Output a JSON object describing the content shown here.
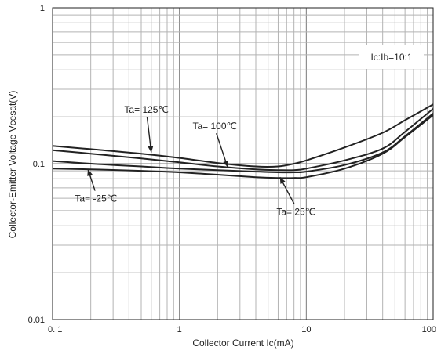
{
  "chart_data": {
    "type": "line",
    "xlabel": "Collector Current   Ic(mA)",
    "ylabel": "Collector-Emitter Voltage   Vcesat(V)",
    "x_scale": "log",
    "y_scale": "log",
    "xlim": [
      0.1,
      100
    ],
    "ylim": [
      0.01,
      1
    ],
    "grid": true,
    "x_ticks": [
      {
        "value": 0.1,
        "label": "0. 1"
      },
      {
        "value": 1,
        "label": "1"
      },
      {
        "value": 10,
        "label": "10"
      },
      {
        "value": 100,
        "label": "100"
      }
    ],
    "y_ticks": [
      {
        "value": 1,
        "label": "1"
      },
      {
        "value": 0.1,
        "label": "0.1"
      },
      {
        "value": 0.01,
        "label": "0.01"
      }
    ],
    "condition_label": "Ic:Ib=10:1",
    "series": [
      {
        "name": "Ta= 125℃",
        "x": [
          0.1,
          0.2,
          0.5,
          1,
          2,
          4,
          6,
          8,
          10,
          20,
          40,
          60,
          100
        ],
        "y": [
          0.13,
          0.124,
          0.116,
          0.109,
          0.101,
          0.096,
          0.096,
          0.1,
          0.105,
          0.127,
          0.158,
          0.19,
          0.24
        ]
      },
      {
        "name": "Ta= 100℃",
        "x": [
          0.1,
          0.2,
          0.5,
          1,
          2,
          4,
          6,
          8,
          10,
          20,
          40,
          60,
          100
        ],
        "y": [
          0.122,
          0.116,
          0.108,
          0.102,
          0.096,
          0.092,
          0.091,
          0.091,
          0.093,
          0.105,
          0.125,
          0.16,
          0.225
        ]
      },
      {
        "name": "Ta= -25℃",
        "x": [
          0.1,
          0.2,
          0.5,
          1,
          2,
          4,
          6,
          8,
          10,
          20,
          40,
          60,
          100
        ],
        "y": [
          0.104,
          0.1,
          0.096,
          0.093,
          0.091,
          0.089,
          0.088,
          0.088,
          0.089,
          0.098,
          0.118,
          0.15,
          0.21
        ]
      },
      {
        "name": "Ta= 25℃",
        "x": [
          0.1,
          0.2,
          0.5,
          1,
          2,
          4,
          6,
          8,
          10,
          20,
          40,
          60,
          100
        ],
        "y": [
          0.093,
          0.092,
          0.09,
          0.088,
          0.085,
          0.082,
          0.081,
          0.081,
          0.082,
          0.093,
          0.116,
          0.148,
          0.205
        ]
      }
    ],
    "annotations": [
      {
        "text": "Ta= 125℃",
        "series_index": 0,
        "text_x": 0.55,
        "text_y": 0.212,
        "arrow_to_x": 0.6,
        "arrow_to_y": 0.118
      },
      {
        "text": "Ta= 100℃",
        "series_index": 1,
        "text_x": 1.9,
        "text_y": 0.166,
        "arrow_to_x": 2.4,
        "arrow_to_y": 0.095
      },
      {
        "text": "Ta= -25℃",
        "series_index": 2,
        "text_x": 0.22,
        "text_y": 0.057,
        "arrow_to_x": 0.19,
        "arrow_to_y": 0.092
      },
      {
        "text": "Ta= 25℃",
        "series_index": 3,
        "text_x": 8.3,
        "text_y": 0.047,
        "arrow_to_x": 6.2,
        "arrow_to_y": 0.082
      }
    ]
  }
}
